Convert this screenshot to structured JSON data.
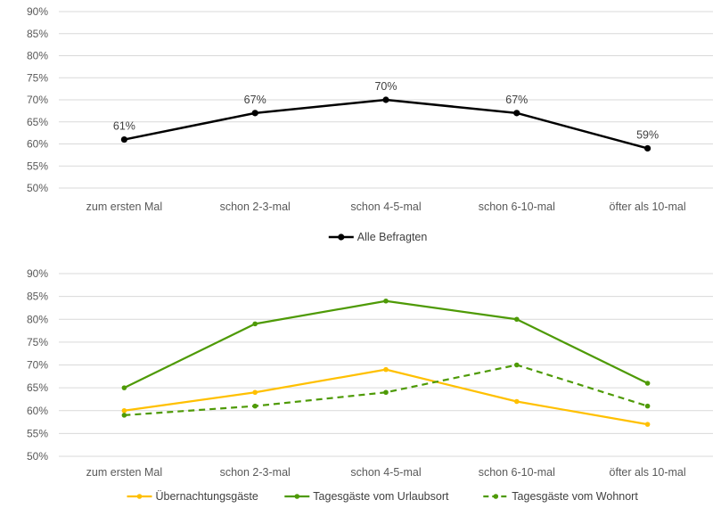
{
  "chart_data": [
    {
      "type": "line",
      "categories": [
        "zum ersten Mal",
        "schon 2-3-mal",
        "schon 4-5-mal",
        "schon 6-10-mal",
        "öfter als 10-mal"
      ],
      "ylim": [
        50,
        90
      ],
      "yticks": [
        "50%",
        "55%",
        "60%",
        "65%",
        "70%",
        "75%",
        "80%",
        "85%",
        "90%"
      ],
      "grid": true,
      "legend_position": "bottom",
      "series": [
        {
          "name": "Alle Befragten",
          "values": [
            61,
            67,
            70,
            67,
            59
          ],
          "data_labels": [
            "61%",
            "67%",
            "70%",
            "67%",
            "59%"
          ],
          "color": "#000000",
          "dashed": false
        }
      ]
    },
    {
      "type": "line",
      "categories": [
        "zum ersten Mal",
        "schon 2-3-mal",
        "schon 4-5-mal",
        "schon 6-10-mal",
        "öfter als 10-mal"
      ],
      "ylim": [
        50,
        90
      ],
      "yticks": [
        "50%",
        "55%",
        "60%",
        "65%",
        "70%",
        "75%",
        "80%",
        "85%",
        "90%"
      ],
      "grid": true,
      "legend_position": "bottom",
      "series": [
        {
          "name": "Übernachtungsgäste",
          "values": [
            60,
            64,
            69,
            62,
            57
          ],
          "color": "#FFC000",
          "dashed": false
        },
        {
          "name": "Tagesgäste vom Urlaubsort",
          "values": [
            65,
            79,
            84,
            80,
            66
          ],
          "color": "#4E9A06",
          "dashed": false
        },
        {
          "name": "Tagesgäste vom Wohnort",
          "values": [
            59,
            61,
            64,
            70,
            61
          ],
          "color": "#4E9A06",
          "dashed": true
        }
      ]
    }
  ]
}
